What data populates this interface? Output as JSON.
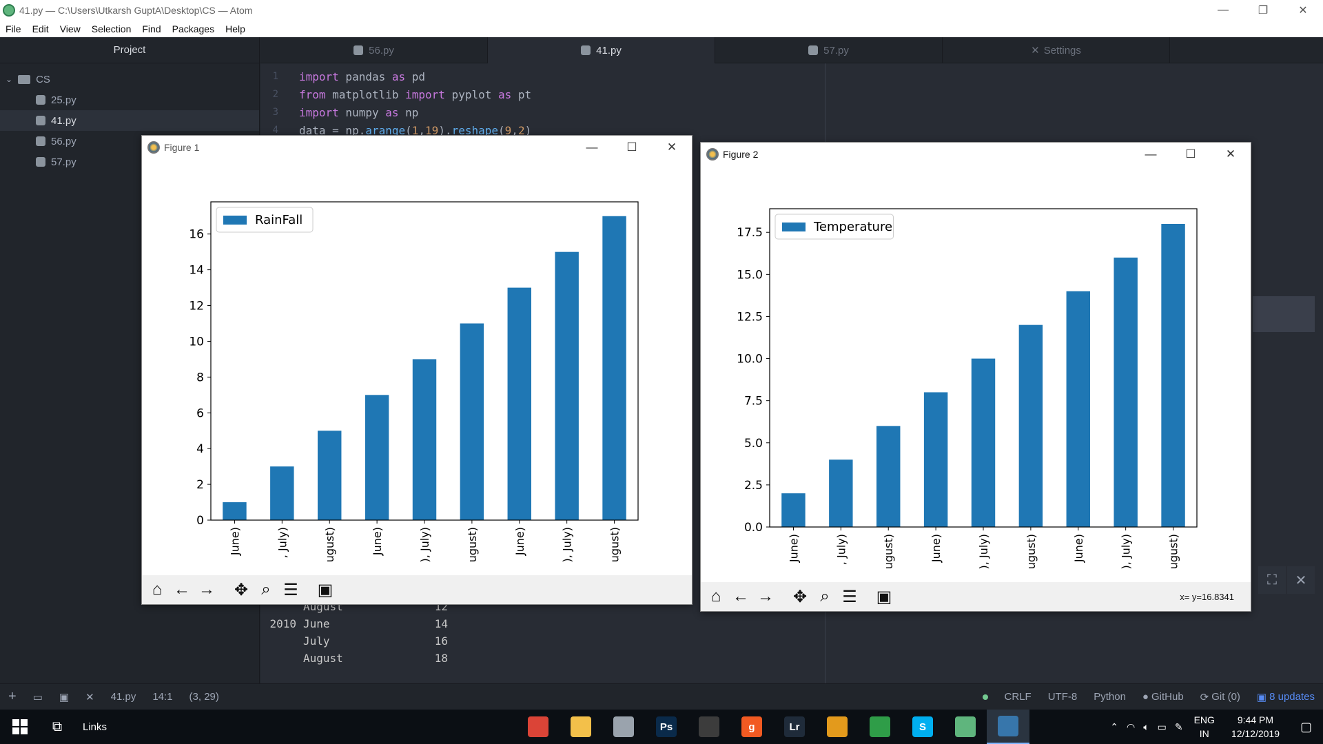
{
  "window": {
    "title": "41.py — C:\\Users\\Utkarsh GuptA\\Desktop\\CS — Atom"
  },
  "menu": [
    "File",
    "Edit",
    "View",
    "Selection",
    "Find",
    "Packages",
    "Help"
  ],
  "tree": {
    "header": "Project",
    "root": "CS",
    "items": [
      {
        "label": "25.py",
        "selected": false
      },
      {
        "label": "41.py",
        "selected": true
      },
      {
        "label": "56.py",
        "selected": false
      },
      {
        "label": "57.py",
        "selected": false
      }
    ]
  },
  "tabs": [
    {
      "label": "56.py",
      "active": false
    },
    {
      "label": "41.py",
      "active": true
    },
    {
      "label": "57.py",
      "active": false
    },
    {
      "label": "Settings",
      "active": false
    }
  ],
  "code": {
    "line_numbers": [
      "1",
      "2",
      "3",
      "4"
    ],
    "lines": [
      [
        "import",
        " pandas ",
        "as",
        " pd"
      ],
      [
        "from",
        " matplotlib ",
        "import",
        " pyplot ",
        "as",
        " pt"
      ],
      [
        "import",
        " numpy ",
        "as",
        " np"
      ]
    ],
    "line4": {
      "a": "data = np.",
      "b": "arange",
      "c": "(",
      "d": "1",
      "e": ",",
      "f": "19",
      "g": ").",
      "h": "reshape",
      "i": "(",
      "j": "9",
      "k": ",",
      "l": "2",
      "m": ")"
    }
  },
  "console": [
    {
      "c1": "",
      "c2": "August",
      "c3": "12"
    },
    {
      "c1": "2010",
      "c2": "June",
      "c3": "14"
    },
    {
      "c1": "",
      "c2": "July",
      "c3": "16"
    },
    {
      "c1": "",
      "c2": "August",
      "c3": "18"
    }
  ],
  "status": {
    "file": "41.py",
    "cursor": "14:1",
    "selection": "(3, 29)",
    "line_ending": "CRLF",
    "encoding": "UTF-8",
    "grammar": "Python",
    "github": "GitHub",
    "git": "Git (0)",
    "updates": "8 updates"
  },
  "taskbar": {
    "links": "Links",
    "lang1": "ENG",
    "lang2": "IN",
    "time": "9:44 PM",
    "date": "12/12/2019",
    "apps": [
      {
        "name": "chrome",
        "label": "",
        "color": "#db4437"
      },
      {
        "name": "explorer",
        "label": "",
        "color": "#f3c04a"
      },
      {
        "name": "printer",
        "label": "",
        "color": "#9aa3ad"
      },
      {
        "name": "photoshop",
        "label": "Ps",
        "color": "#0a2a4a"
      },
      {
        "name": "app-dark",
        "label": "",
        "color": "#3c3c3c"
      },
      {
        "name": "g-app",
        "label": "g",
        "color": "#f25a22"
      },
      {
        "name": "lightroom",
        "label": "Lr",
        "color": "#1f2b3a"
      },
      {
        "name": "box-app",
        "label": "",
        "color": "#e39a1c"
      },
      {
        "name": "tiles-app",
        "label": "",
        "color": "#2f9d48"
      },
      {
        "name": "skype",
        "label": "S",
        "color": "#00aff0"
      },
      {
        "name": "atom",
        "label": "",
        "color": "#5fb57d"
      },
      {
        "name": "python",
        "label": "",
        "color": "#3776ab"
      }
    ]
  },
  "figure1": {
    "title": "Figure 1",
    "coords": "",
    "chart_data": {
      "type": "bar",
      "categories": [
        " June)",
        ", July)",
        "ugust)",
        " June)",
        "), July)",
        "ugust)",
        " June)",
        "), July)",
        "ugust)"
      ],
      "values": [
        1,
        3,
        5,
        7,
        9,
        11,
        13,
        15,
        17
      ],
      "series": [
        {
          "name": "RainFall",
          "values": [
            1,
            3,
            5,
            7,
            9,
            11,
            13,
            15,
            17
          ]
        }
      ],
      "ylim": [
        0,
        17.8
      ],
      "yticks": [
        0,
        2,
        4,
        6,
        8,
        10,
        12,
        14,
        16
      ],
      "ytick_labels": [
        "0",
        "2",
        "4",
        "6",
        "8",
        "10",
        "12",
        "14",
        "16"
      ],
      "legend": "top-left",
      "color": "#1f77b4"
    }
  },
  "figure2": {
    "title": "Figure 2",
    "coords": "x= y=16.8341",
    "chart_data": {
      "type": "bar",
      "categories": [
        " June)",
        ", July)",
        "ugust)",
        " June)",
        "), July)",
        "ugust)",
        " June)",
        "), July)",
        "ugust)"
      ],
      "values": [
        2,
        4,
        6,
        8,
        10,
        12,
        14,
        16,
        18
      ],
      "series": [
        {
          "name": "Temperature",
          "values": [
            2,
            4,
            6,
            8,
            10,
            12,
            14,
            16,
            18
          ]
        }
      ],
      "ylim": [
        0,
        18.9
      ],
      "yticks": [
        0,
        2.5,
        5,
        7.5,
        10,
        12.5,
        15,
        17.5
      ],
      "ytick_labels": [
        "0.0",
        "2.5",
        "5.0",
        "7.5",
        "10.0",
        "12.5",
        "15.0",
        "17.5"
      ],
      "legend": "top-left",
      "color": "#1f77b4"
    }
  }
}
